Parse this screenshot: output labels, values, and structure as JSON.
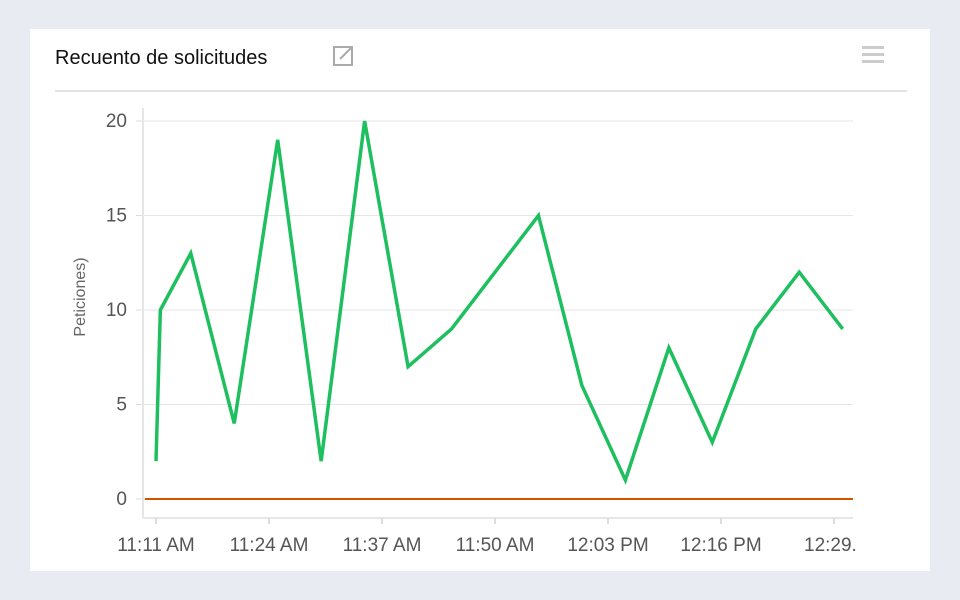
{
  "panel": {
    "title": "Recuento de solicitudes",
    "icons": [
      "external-link-icon",
      "hamburger-menu-icon"
    ]
  },
  "chart_data": {
    "type": "line",
    "title": "Recuento de solicitudes",
    "xlabel": "",
    "ylabel": "Peticiones)",
    "ylim": [
      0,
      20
    ],
    "yticks": [
      "0",
      "5",
      "10",
      "15",
      "20"
    ],
    "xticks": [
      "11:11 AM",
      "11:24 AM",
      "11:37 AM",
      "11:50 AM",
      "12:03 PM",
      "12:16 PM",
      "12:29."
    ],
    "grid": true,
    "x": [
      "11:11:00",
      "11:11:30",
      "11:15",
      "11:20",
      "11:25",
      "11:30",
      "11:35",
      "11:40",
      "11:45",
      "11:50",
      "11:55",
      "12:00",
      "12:05",
      "12:10",
      "12:15",
      "12:20",
      "12:25",
      "12:30"
    ],
    "series": [
      {
        "values": [
          2,
          10,
          13,
          4,
          19,
          2,
          20,
          7,
          9,
          12,
          15,
          6,
          1,
          8,
          3,
          9,
          12,
          9
        ],
        "color": "#1dbf5f"
      },
      {
        "values": [
          0,
          0,
          0,
          0,
          0,
          0,
          0,
          0,
          0,
          0,
          0,
          0,
          0,
          0,
          0,
          0,
          0,
          0
        ],
        "color": "#d35400"
      }
    ]
  }
}
